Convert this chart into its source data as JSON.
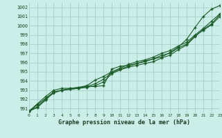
{
  "title": "Graphe pression niveau de la mer (hPa)",
  "bg_color": "#cceee8",
  "grid_color": "#aad4ce",
  "line_color": "#1a5c28",
  "xlim": [
    0,
    23
  ],
  "ylim": [
    990.5,
    1002.5
  ],
  "xticks": [
    0,
    1,
    2,
    3,
    4,
    5,
    6,
    7,
    8,
    9,
    10,
    11,
    12,
    13,
    14,
    15,
    16,
    17,
    18,
    19,
    20,
    21,
    22,
    23
  ],
  "yticks": [
    991,
    992,
    993,
    994,
    995,
    996,
    997,
    998,
    999,
    1000,
    1001,
    1002
  ],
  "series": [
    [
      990.7,
      991.1,
      991.9,
      992.8,
      993.0,
      993.2,
      993.3,
      993.4,
      993.4,
      993.5,
      995.3,
      995.6,
      995.7,
      995.9,
      996.2,
      996.4,
      996.6,
      997.1,
      997.7,
      998.5,
      999.8,
      1001.0,
      1001.8,
      1002.2
    ],
    [
      990.7,
      991.2,
      992.0,
      992.7,
      993.0,
      993.1,
      993.2,
      993.3,
      993.5,
      993.9,
      994.8,
      995.2,
      995.5,
      995.7,
      995.9,
      996.1,
      996.5,
      996.8,
      997.4,
      997.9,
      998.8,
      999.6,
      1000.2,
      1001.2
    ],
    [
      990.7,
      991.5,
      992.3,
      993.0,
      993.2,
      993.2,
      993.3,
      993.5,
      994.1,
      994.5,
      995.0,
      995.4,
      995.8,
      996.1,
      996.3,
      996.6,
      997.0,
      997.3,
      997.8,
      998.2,
      999.0,
      999.7,
      1000.5,
      1001.3
    ],
    [
      990.7,
      991.4,
      992.1,
      992.8,
      993.0,
      993.1,
      993.2,
      993.4,
      993.7,
      994.2,
      994.9,
      995.3,
      995.6,
      995.9,
      996.1,
      996.4,
      996.8,
      997.0,
      997.6,
      998.0,
      998.9,
      999.5,
      1000.1,
      1001.0
    ]
  ]
}
